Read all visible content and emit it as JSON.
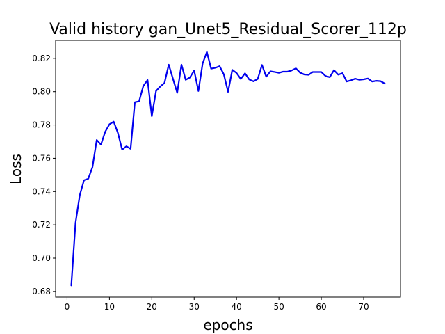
{
  "chart_data": {
    "type": "line",
    "title": "Valid history gan_Unet5_Residual_Scorer_112p",
    "xlabel": "epochs",
    "ylabel": "Loss",
    "xlim": [
      -2.7,
      78.7
    ],
    "ylim": [
      0.6766,
      0.8308
    ],
    "xticks": [
      0,
      10,
      20,
      30,
      40,
      50,
      60,
      70
    ],
    "yticks": [
      0.68,
      0.7,
      0.72,
      0.74,
      0.76,
      0.78,
      0.8,
      0.82
    ],
    "ytick_labels": [
      "0.68",
      "0.70",
      "0.72",
      "0.74",
      "0.76",
      "0.78",
      "0.80",
      "0.82"
    ],
    "grid": false,
    "legend": "none",
    "series": [
      {
        "color": "#0000ee",
        "x": [
          1,
          2,
          3,
          4,
          5,
          6,
          7,
          8,
          9,
          10,
          11,
          12,
          13,
          14,
          15,
          16,
          17,
          18,
          19,
          20,
          21,
          22,
          23,
          24,
          25,
          26,
          27,
          28,
          29,
          30,
          31,
          32,
          33,
          34,
          35,
          36,
          37,
          38,
          39,
          40,
          41,
          42,
          43,
          44,
          45,
          46,
          47,
          48,
          49,
          50,
          51,
          52,
          53,
          54,
          55,
          56,
          57,
          58,
          59,
          60,
          61,
          62,
          63,
          64,
          65,
          66,
          67,
          68,
          69,
          70,
          71,
          72,
          73,
          74,
          75
        ],
        "y": [
          0.6836,
          0.7212,
          0.7378,
          0.7468,
          0.7477,
          0.7547,
          0.771,
          0.7682,
          0.7759,
          0.7804,
          0.782,
          0.7752,
          0.7652,
          0.7672,
          0.7657,
          0.7937,
          0.7942,
          0.8034,
          0.807,
          0.7853,
          0.8004,
          0.8031,
          0.8053,
          0.8162,
          0.8077,
          0.7993,
          0.8162,
          0.8071,
          0.8085,
          0.8127,
          0.8004,
          0.8169,
          0.8238,
          0.8138,
          0.8143,
          0.8153,
          0.8104,
          0.7999,
          0.8131,
          0.8112,
          0.8076,
          0.811,
          0.8073,
          0.8062,
          0.8076,
          0.816,
          0.809,
          0.8122,
          0.8118,
          0.8113,
          0.812,
          0.812,
          0.8127,
          0.814,
          0.8114,
          0.8103,
          0.8101,
          0.8118,
          0.8118,
          0.8118,
          0.8094,
          0.8087,
          0.8129,
          0.8102,
          0.8111,
          0.8061,
          0.8068,
          0.8078,
          0.8071,
          0.8074,
          0.8079,
          0.8061,
          0.8065,
          0.8063,
          0.8048
        ]
      }
    ]
  }
}
